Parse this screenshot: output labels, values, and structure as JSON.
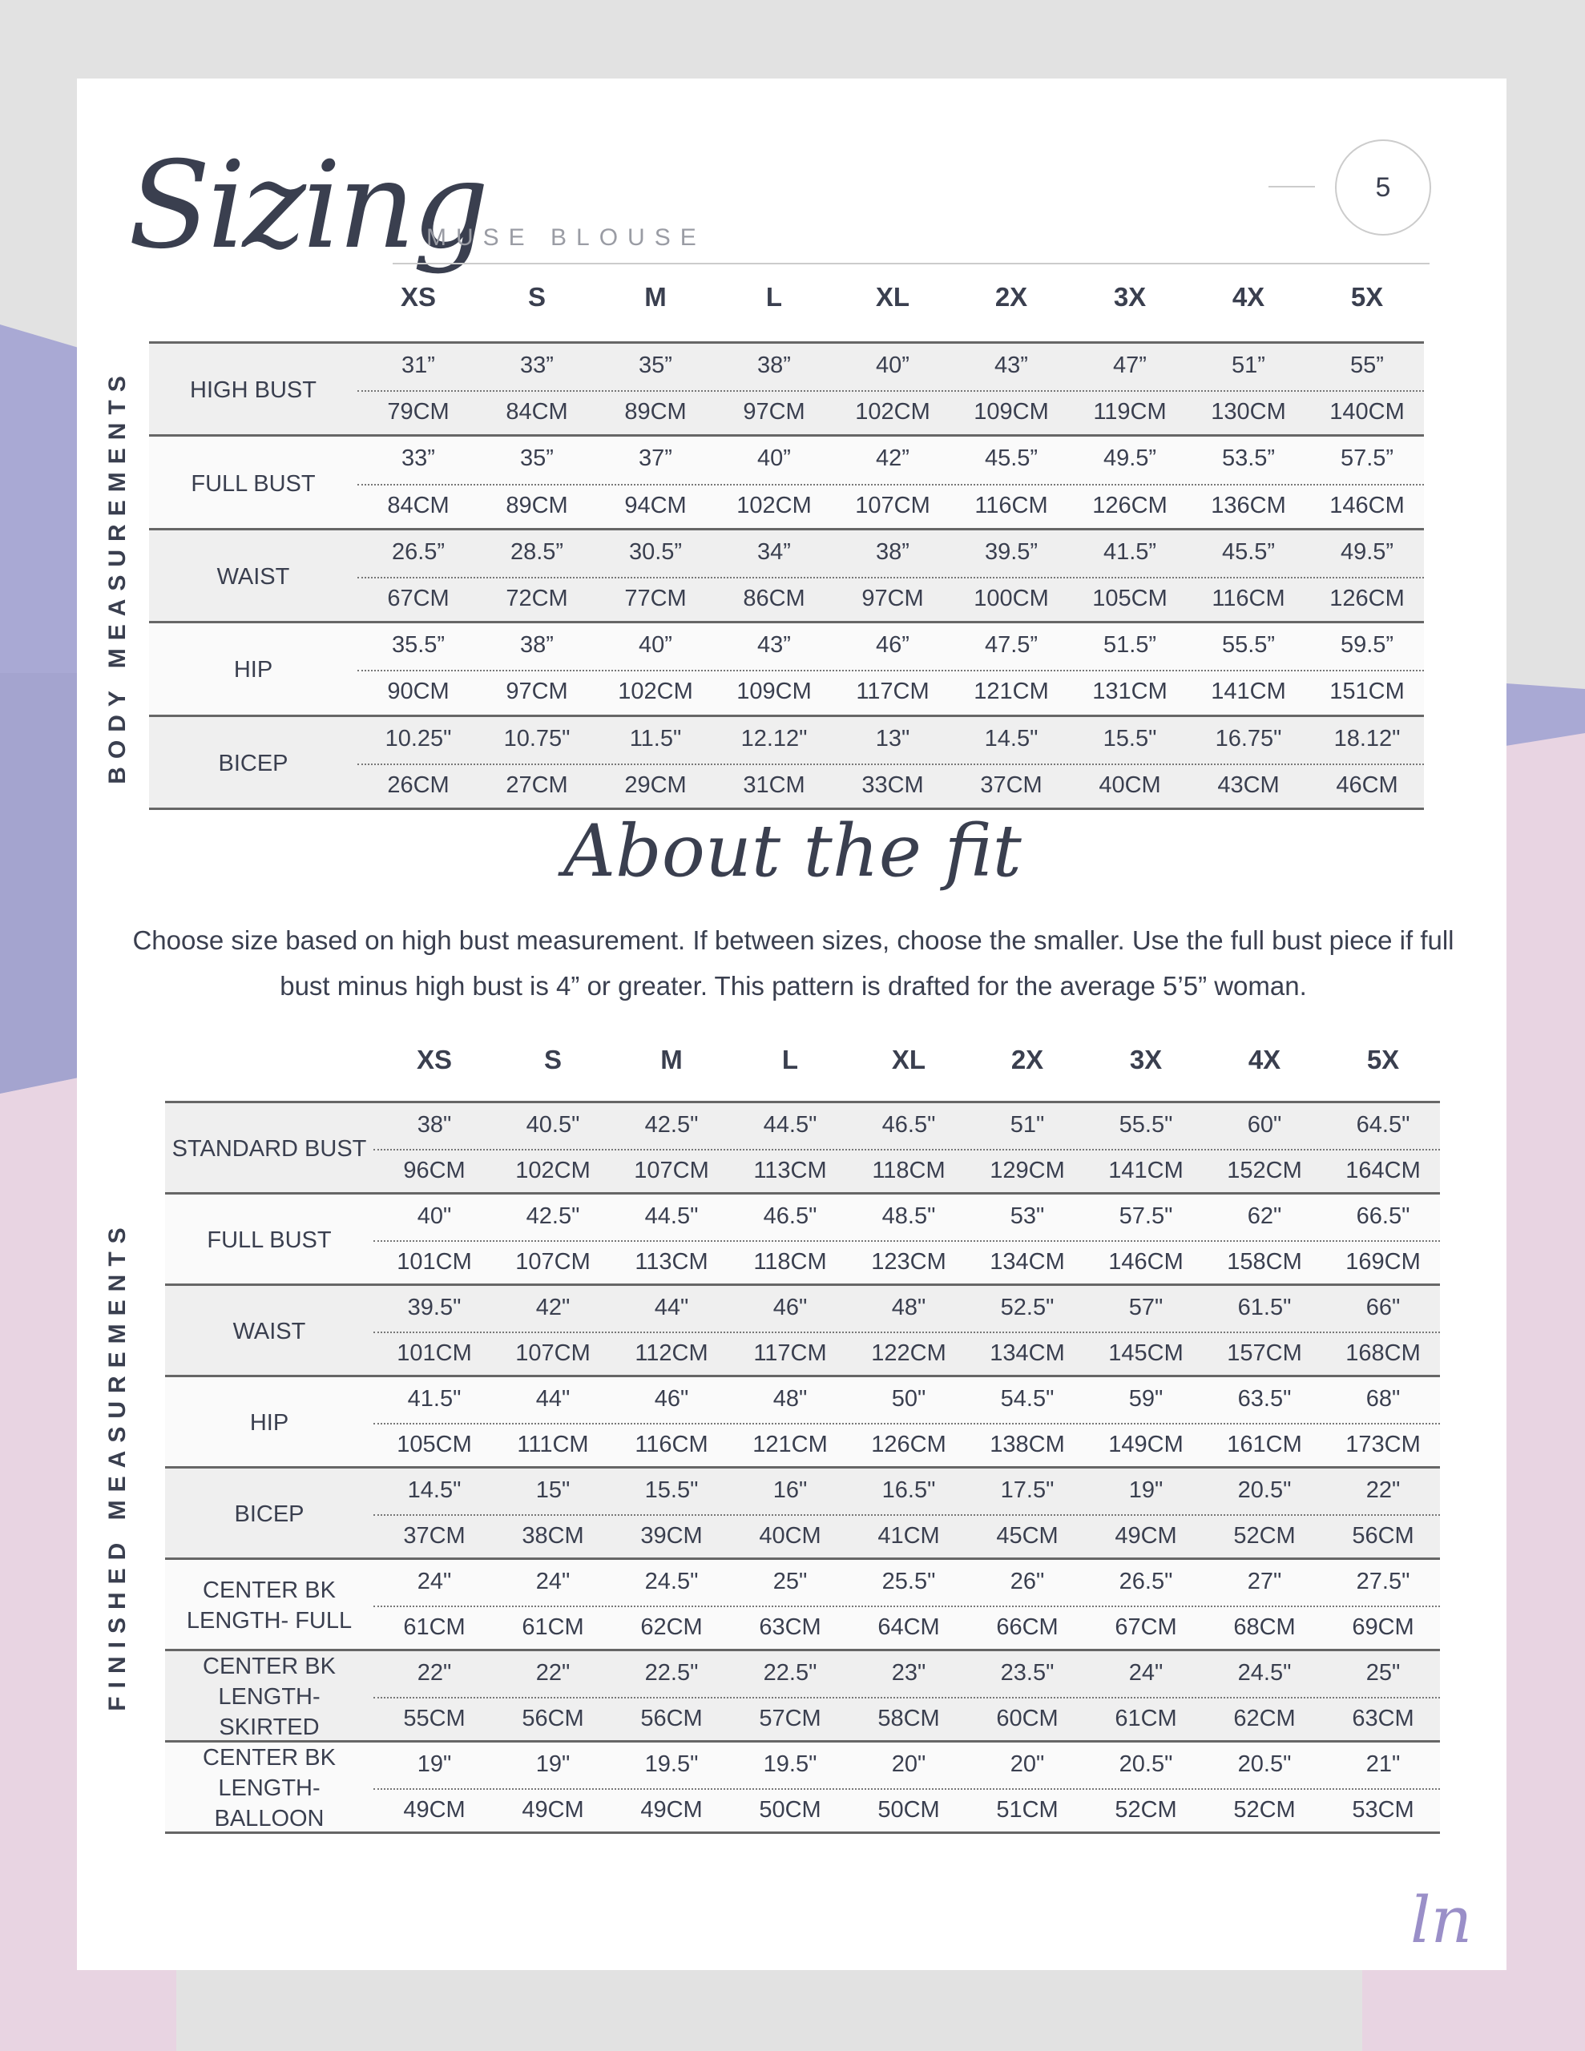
{
  "header": {
    "title": "Sizing",
    "subtitle": "MUSE BLOUSE",
    "page_number": "5"
  },
  "colors": {
    "purple": "#a9a9d4",
    "pink": "#e8d4e2",
    "text": "#3a3f4f"
  },
  "sizes": [
    "XS",
    "S",
    "M",
    "L",
    "XL",
    "2X",
    "3X",
    "4X",
    "5X"
  ],
  "body_measurements": {
    "label": "BODY MEASUREMENTS",
    "rows": [
      {
        "label": "HIGH BUST",
        "in": [
          "31”",
          "33”",
          "35”",
          "38”",
          "40”",
          "43”",
          "47”",
          "51”",
          "55”"
        ],
        "cm": [
          "79CM",
          "84CM",
          "89CM",
          "97CM",
          "102CM",
          "109CM",
          "119CM",
          "130CM",
          "140CM"
        ]
      },
      {
        "label": "FULL BUST",
        "in": [
          "33”",
          "35”",
          "37”",
          "40”",
          "42”",
          "45.5”",
          "49.5”",
          "53.5”",
          "57.5”"
        ],
        "cm": [
          "84CM",
          "89CM",
          "94CM",
          "102CM",
          "107CM",
          "116CM",
          "126CM",
          "136CM",
          "146CM"
        ]
      },
      {
        "label": "WAIST",
        "in": [
          "26.5”",
          "28.5”",
          "30.5”",
          "34”",
          "38”",
          "39.5”",
          "41.5”",
          "45.5”",
          "49.5”"
        ],
        "cm": [
          "67CM",
          "72CM",
          "77CM",
          "86CM",
          "97CM",
          "100CM",
          "105CM",
          "116CM",
          "126CM"
        ]
      },
      {
        "label": "HIP",
        "in": [
          "35.5”",
          "38”",
          "40”",
          "43”",
          "46”",
          "47.5”",
          "51.5”",
          "55.5”",
          "59.5”"
        ],
        "cm": [
          "90CM",
          "97CM",
          "102CM",
          "109CM",
          "117CM",
          "121CM",
          "131CM",
          "141CM",
          "151CM"
        ]
      },
      {
        "label": "BICEP",
        "in": [
          "10.25\"",
          "10.75\"",
          "11.5\"",
          "12.12\"",
          "13\"",
          "14.5\"",
          "15.5\"",
          "16.75\"",
          "18.12\""
        ],
        "cm": [
          "26CM",
          "27CM",
          "29CM",
          "31CM",
          "33CM",
          "37CM",
          "40CM",
          "43CM",
          "46CM"
        ]
      }
    ]
  },
  "about": {
    "title": "About the fit",
    "text": "Choose size based on high bust measurement. If between sizes, choose the smaller. Use the full bust piece if full bust minus high bust is 4” or greater. This pattern is drafted for the average 5’5” woman."
  },
  "finished_measurements": {
    "label": "FINISHED MEASUREMENTS",
    "rows": [
      {
        "label": "STANDARD BUST",
        "in": [
          "38\"",
          "40.5\"",
          "42.5\"",
          "44.5\"",
          "46.5\"",
          "51\"",
          "55.5\"",
          "60\"",
          "64.5\""
        ],
        "cm": [
          "96CM",
          "102CM",
          "107CM",
          "113CM",
          "118CM",
          "129CM",
          "141CM",
          "152CM",
          "164CM"
        ]
      },
      {
        "label": "FULL BUST",
        "in": [
          "40\"",
          "42.5\"",
          "44.5\"",
          "46.5\"",
          "48.5\"",
          "53\"",
          "57.5\"",
          "62\"",
          "66.5\""
        ],
        "cm": [
          "101CM",
          "107CM",
          "113CM",
          "118CM",
          "123CM",
          "134CM",
          "146CM",
          "158CM",
          "169CM"
        ]
      },
      {
        "label": "WAIST",
        "in": [
          "39.5\"",
          "42\"",
          "44\"",
          "46\"",
          "48\"",
          "52.5\"",
          "57\"",
          "61.5\"",
          "66\""
        ],
        "cm": [
          "101CM",
          "107CM",
          "112CM",
          "117CM",
          "122CM",
          "134CM",
          "145CM",
          "157CM",
          "168CM"
        ]
      },
      {
        "label": "HIP",
        "in": [
          "41.5\"",
          "44\"",
          "46\"",
          "48\"",
          "50\"",
          "54.5\"",
          "59\"",
          "63.5\"",
          "68\""
        ],
        "cm": [
          "105CM",
          "111CM",
          "116CM",
          "121CM",
          "126CM",
          "138CM",
          "149CM",
          "161CM",
          "173CM"
        ]
      },
      {
        "label": "BICEP",
        "in": [
          "14.5\"",
          "15\"",
          "15.5\"",
          "16\"",
          "16.5\"",
          "17.5\"",
          "19\"",
          "20.5\"",
          "22\""
        ],
        "cm": [
          "37CM",
          "38CM",
          "39CM",
          "40CM",
          "41CM",
          "45CM",
          "49CM",
          "52CM",
          "56CM"
        ]
      },
      {
        "label": "CENTER BK LENGTH- FULL",
        "in": [
          "24\"",
          "24\"",
          "24.5\"",
          "25\"",
          "25.5\"",
          "26\"",
          "26.5\"",
          "27\"",
          "27.5\""
        ],
        "cm": [
          "61CM",
          "61CM",
          "62CM",
          "63CM",
          "64CM",
          "66CM",
          "67CM",
          "68CM",
          "69CM"
        ]
      },
      {
        "label": "CENTER BK LENGTH- SKIRTED",
        "in": [
          "22\"",
          "22\"",
          "22.5\"",
          "22.5\"",
          "23\"",
          "23.5\"",
          "24\"",
          "24.5\"",
          "25\""
        ],
        "cm": [
          "55CM",
          "56CM",
          "56CM",
          "57CM",
          "58CM",
          "60CM",
          "61CM",
          "62CM",
          "63CM"
        ]
      },
      {
        "label": "CENTER BK LENGTH- BALLOON",
        "in": [
          "19\"",
          "19\"",
          "19.5\"",
          "19.5\"",
          "20\"",
          "20\"",
          "20.5\"",
          "20.5\"",
          "21\""
        ],
        "cm": [
          "49CM",
          "49CM",
          "49CM",
          "50CM",
          "50CM",
          "51CM",
          "52CM",
          "52CM",
          "53CM"
        ]
      }
    ]
  },
  "logo": "ln"
}
